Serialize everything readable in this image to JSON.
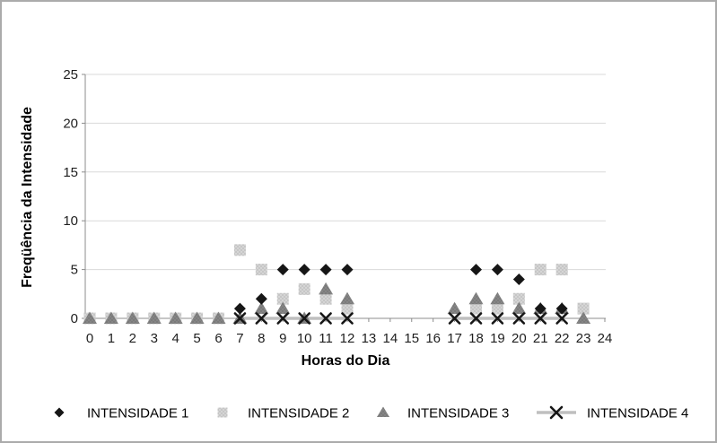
{
  "chart_data": {
    "type": "scatter",
    "title": "",
    "x_label": "Horas do Dia",
    "y_label": "Freqüência da Intensidade",
    "xlim": [
      0,
      24
    ],
    "ylim": [
      0,
      25
    ],
    "x_ticks": [
      0,
      1,
      2,
      3,
      4,
      5,
      6,
      7,
      8,
      9,
      10,
      11,
      12,
      13,
      14,
      15,
      16,
      17,
      18,
      19,
      20,
      21,
      22,
      23,
      24
    ],
    "y_ticks": [
      0,
      5,
      10,
      15,
      20,
      25
    ],
    "grid": "horizontal-only",
    "legend_position": "bottom",
    "hours": [
      0,
      1,
      2,
      3,
      4,
      5,
      6,
      7,
      8,
      9,
      10,
      11,
      12,
      13,
      14,
      15,
      16,
      17,
      18,
      19,
      20,
      21,
      22,
      23
    ],
    "series": [
      {
        "name": "INTENSIDADE 1",
        "marker": "diamond",
        "color": "#161616",
        "has_line": false,
        "values": [
          null,
          null,
          null,
          null,
          null,
          null,
          null,
          1,
          2,
          5,
          5,
          5,
          5,
          null,
          null,
          null,
          null,
          null,
          5,
          5,
          4,
          1,
          1,
          null
        ]
      },
      {
        "name": "INTENSIDADE 2",
        "marker": "square",
        "color": "#C5C5C5",
        "has_line": false,
        "values": [
          0,
          0,
          0,
          0,
          0,
          0,
          0,
          7,
          5,
          2,
          3,
          2,
          1,
          null,
          null,
          null,
          null,
          null,
          1,
          1,
          2,
          5,
          5,
          1
        ]
      },
      {
        "name": "INTENSIDADE 3",
        "marker": "triangle",
        "color": "#838383",
        "has_line": false,
        "values": [
          0,
          0,
          0,
          0,
          0,
          0,
          0,
          0,
          1,
          1,
          0,
          3,
          2,
          null,
          null,
          null,
          null,
          1,
          2,
          2,
          1,
          1,
          1,
          0
        ]
      },
      {
        "name": "INTENSIDADE 4",
        "marker": "x",
        "color": "#161616",
        "has_line": true,
        "line_color": "#BFBFBF",
        "values": [
          null,
          null,
          null,
          null,
          null,
          null,
          null,
          0,
          0,
          0,
          0,
          0,
          0,
          null,
          null,
          null,
          null,
          0,
          0,
          0,
          0,
          0,
          0,
          null
        ]
      }
    ],
    "colors": {
      "background": "#FFFFFF",
      "border": "#ABABAB",
      "gridline": "#D9D9D9",
      "axis": "#8C8C8C",
      "tick_text": "#1F1F1F"
    }
  }
}
